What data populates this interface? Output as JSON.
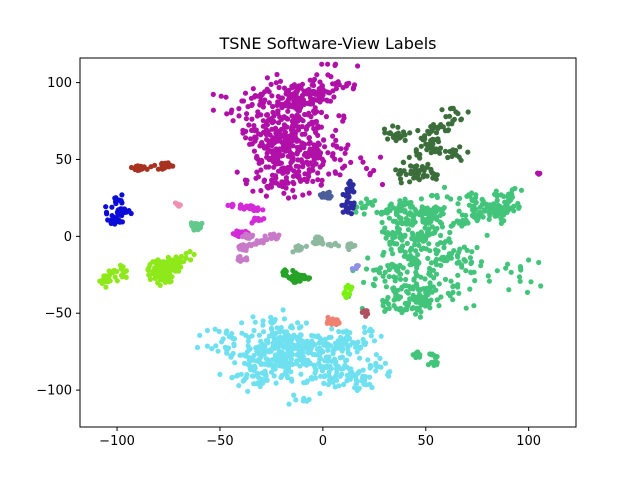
{
  "chart_data": {
    "type": "scatter",
    "title": "TSNE Software-View Labels",
    "xlabel": "",
    "ylabel": "",
    "xlim": [
      -118,
      123
    ],
    "ylim": [
      -124,
      116
    ],
    "xticks": [
      -100,
      -50,
      0,
      50,
      100
    ],
    "yticks": [
      -100,
      -50,
      0,
      50,
      100
    ],
    "grid": false,
    "legend": "none",
    "clusters": [
      {
        "color": "#b010a8",
        "center": [
          -15,
          60
        ],
        "spread": [
          30,
          32
        ],
        "count": 520
      },
      {
        "color": "#b010a8",
        "center": [
          -5,
          92
        ],
        "spread": [
          18,
          10
        ],
        "count": 110
      },
      {
        "color": "#6ee0f0",
        "center": [
          -15,
          -75
        ],
        "spread": [
          32,
          22
        ],
        "count": 480
      },
      {
        "color": "#6ee0f0",
        "center": [
          20,
          -80
        ],
        "spread": [
          12,
          20
        ],
        "count": 80
      },
      {
        "color": "#42c47a",
        "center": [
          55,
          -20
        ],
        "spread": [
          30,
          26
        ],
        "count": 360
      },
      {
        "color": "#42c47a",
        "center": [
          80,
          20
        ],
        "spread": [
          16,
          12
        ],
        "count": 140
      },
      {
        "color": "#42c47a",
        "center": [
          45,
          15
        ],
        "spread": [
          18,
          12
        ],
        "count": 130
      },
      {
        "color": "#42c47a",
        "center": [
          55,
          -75
        ],
        "spread": [
          6,
          6
        ],
        "count": 30
      },
      {
        "color": "#8ee81a",
        "center": [
          -82,
          -20
        ],
        "spread": [
          16,
          12
        ],
        "count": 170
      },
      {
        "color": "#3c6e3c",
        "center": [
          45,
          60
        ],
        "spread": [
          16,
          16
        ],
        "count": 150
      },
      {
        "color": "#0c0cd8",
        "center": [
          -97,
          18
        ],
        "spread": [
          9,
          7
        ],
        "count": 60
      },
      {
        "color": "#a83220",
        "center": [
          -83,
          45
        ],
        "spread": [
          7,
          5
        ],
        "count": 45
      },
      {
        "color": "#d42ad8",
        "center": [
          -36,
          15
        ],
        "spread": [
          9,
          5
        ],
        "count": 60
      },
      {
        "color": "#c87ac8",
        "center": [
          -35,
          -8
        ],
        "spread": [
          9,
          6
        ],
        "count": 70
      },
      {
        "color": "#26a326",
        "center": [
          -13,
          -27
        ],
        "spread": [
          9,
          5
        ],
        "count": 55
      },
      {
        "color": "#8fb8a0",
        "center": [
          -1,
          -5
        ],
        "spread": [
          10,
          5
        ],
        "count": 55
      },
      {
        "color": "#2c2ca0",
        "center": [
          14,
          27
        ],
        "spread": [
          6,
          10
        ],
        "count": 45
      },
      {
        "color": "#4a5e9a",
        "center": [
          0,
          29
        ],
        "spread": [
          3,
          6
        ],
        "count": 18
      },
      {
        "color": "#f08070",
        "center": [
          5,
          -57
        ],
        "spread": [
          5,
          3
        ],
        "count": 28
      },
      {
        "color": "#7cf012",
        "center": [
          12,
          -35
        ],
        "spread": [
          4,
          3
        ],
        "count": 22
      },
      {
        "color": "#62c88c",
        "center": [
          -61,
          6
        ],
        "spread": [
          7,
          3
        ],
        "count": 24
      },
      {
        "color": "#b05060",
        "center": [
          20,
          -48
        ],
        "spread": [
          2,
          2
        ],
        "count": 8
      },
      {
        "color": "#f090b0",
        "center": [
          -70,
          21
        ],
        "spread": [
          1.5,
          1
        ],
        "count": 5
      },
      {
        "color": "#9090e8",
        "center": [
          15,
          -19
        ],
        "spread": [
          2,
          1
        ],
        "count": 5
      },
      {
        "color": "#b010a8",
        "center": [
          105,
          42
        ],
        "spread": [
          1,
          1
        ],
        "count": 3
      }
    ]
  }
}
